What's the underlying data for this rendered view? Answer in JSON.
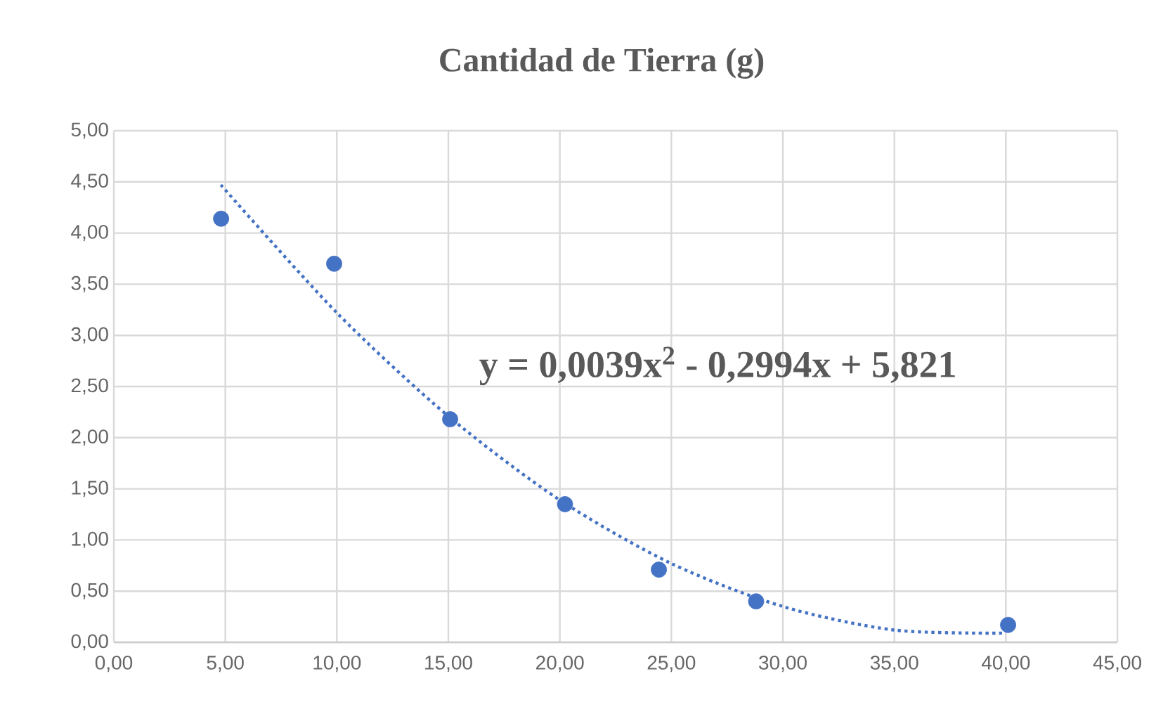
{
  "chart_data": {
    "type": "scatter",
    "title": "Cantidad de Tierra (g)",
    "annotations": [
      "y = 0,0039x$^{2}$ - 0,2994x + 5,821"
    ],
    "series": [
      {
        "color": "#4472c4",
        "marker": "circle",
        "x": [
          4.81,
          9.88,
          15.08,
          20.23,
          24.44,
          28.8,
          40.1
        ],
        "values": [
          4.14,
          3.7,
          2.18,
          1.35,
          0.71,
          0.4,
          0.17
        ]
      },
      {
        "type": "line",
        "color": "#4472c4",
        "line_style": "dotted",
        "marker": "none",
        "x": [
          4.8,
          10,
          15,
          20,
          25,
          30,
          35,
          40
        ],
        "values": [
          4.47,
          3.22,
          2.21,
          1.39,
          0.77,
          0.35,
          0.12,
          0.09
        ]
      }
    ],
    "xlim": [
      0,
      45
    ],
    "ylim": [
      0,
      5
    ],
    "xticks": [
      {
        "value": 0,
        "label": "0,00"
      },
      {
        "value": 5,
        "label": "5,00"
      },
      {
        "value": 10,
        "label": "10,00"
      },
      {
        "value": 15,
        "label": "15,00"
      },
      {
        "value": 20,
        "label": "20,00"
      },
      {
        "value": 25,
        "label": "25,00"
      },
      {
        "value": 30,
        "label": "30,00"
      },
      {
        "value": 35,
        "label": "35,00"
      },
      {
        "value": 40,
        "label": "40,00"
      },
      {
        "value": 45,
        "label": "45,00"
      }
    ],
    "yticks": [
      {
        "value": 0,
        "label": "0,00"
      },
      {
        "value": 0.5,
        "label": "0,50"
      },
      {
        "value": 1,
        "label": "1,00"
      },
      {
        "value": 1.5,
        "label": "1,50"
      },
      {
        "value": 2,
        "label": "2,00"
      },
      {
        "value": 2.5,
        "label": "2,50"
      },
      {
        "value": 3,
        "label": "3,00"
      },
      {
        "value": 3.5,
        "label": "3,50"
      },
      {
        "value": 4,
        "label": "4,00"
      },
      {
        "value": 4.5,
        "label": "4,50"
      },
      {
        "value": 5,
        "label": "5,00"
      }
    ],
    "grid": true
  }
}
